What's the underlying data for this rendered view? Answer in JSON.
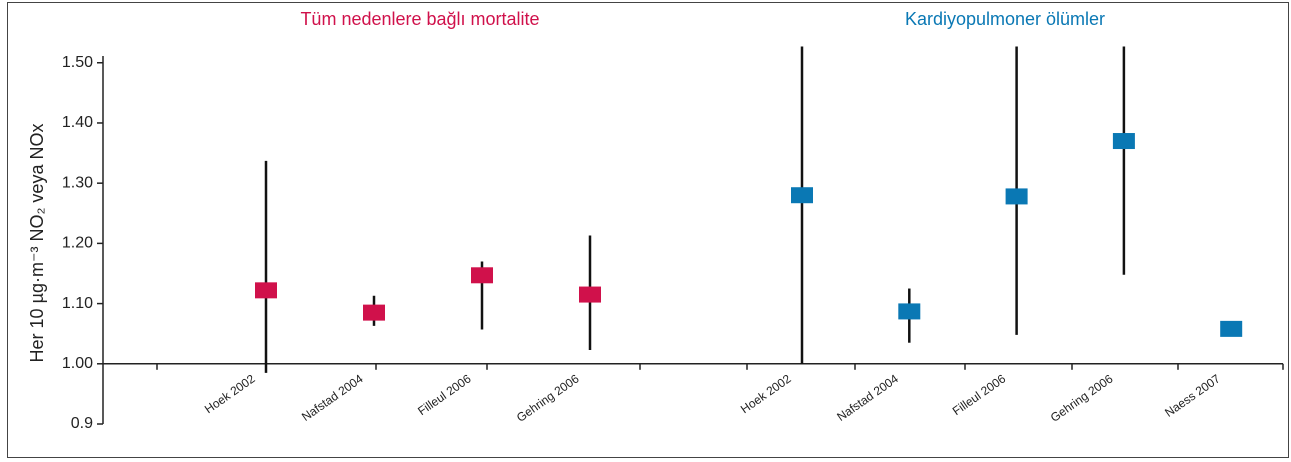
{
  "chart_data": {
    "type": "forest",
    "ylabel": "Her 10 µg·m⁻³ NO₂ veya NOx",
    "ylim": [
      0.9,
      1.53
    ],
    "yticks": [
      0.9,
      {
        "value": 1.0,
        "label": "1.00"
      },
      {
        "value": 1.1,
        "label": "1.10"
      },
      {
        "value": 1.2,
        "label": "1.20"
      },
      {
        "value": 1.3,
        "label": "1.30"
      },
      {
        "value": 1.4,
        "label": "1.40"
      },
      {
        "value": 1.5,
        "label": "1.50"
      }
    ],
    "groups": [
      {
        "title": "Tüm nedenlere bağlı mortalite",
        "color": "#d0114b",
        "categories": [
          "Hoek 2002",
          "Nafstad 2004",
          "Filleul 2006",
          "Gehring 2006"
        ],
        "values": [
          1.122,
          1.085,
          1.147,
          1.115
        ],
        "lower": [
          0.985,
          1.063,
          1.057,
          1.023
        ],
        "upper": [
          1.337,
          1.113,
          1.17,
          1.213
        ]
      },
      {
        "title": "Kardiyopulmoner ölümler",
        "color": "#0a78b4",
        "categories": [
          "Hoek 2002",
          "Nafstad 2004",
          "Filleul 2006",
          "Gehring 2006",
          "Naess 2007"
        ],
        "values": [
          1.28,
          1.087,
          1.278,
          1.37,
          1.058
        ],
        "lower": [
          1.0,
          1.035,
          1.048,
          1.148,
          null
        ],
        "upper": [
          1.527,
          1.125,
          1.527,
          1.527,
          null
        ]
      }
    ]
  }
}
